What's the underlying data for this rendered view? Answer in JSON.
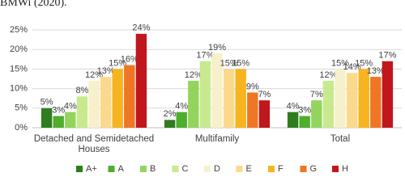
{
  "source_text": "BMWi (2020).",
  "chart_data": {
    "type": "bar",
    "categories": [
      "Detached and Semidetached Houses",
      "Multifamily",
      "Total"
    ],
    "series": [
      {
        "name": "A+",
        "color": "#2f7d1f",
        "values": [
          5,
          2,
          4
        ],
        "value_labels": [
          "5%",
          "2%",
          "4%"
        ]
      },
      {
        "name": "A",
        "color": "#4fae2c",
        "values": [
          3,
          4,
          3
        ],
        "value_labels": [
          "3%",
          "4%",
          "3%"
        ]
      },
      {
        "name": "B",
        "color": "#93d45e",
        "values": [
          4,
          12,
          7
        ],
        "value_labels": [
          "4%",
          "12%",
          "7%"
        ]
      },
      {
        "name": "C",
        "color": "#c9e98e",
        "values": [
          8,
          17,
          12
        ],
        "value_labels": [
          "8%",
          "17%",
          "12%"
        ]
      },
      {
        "name": "D",
        "color": "#f6f1cb",
        "values": [
          12,
          19,
          15
        ],
        "value_labels": [
          "12%",
          "19%",
          "15%"
        ]
      },
      {
        "name": "E",
        "color": "#fbd98c",
        "values": [
          13,
          15,
          14
        ],
        "value_labels": [
          "13%",
          "15%",
          "14%"
        ]
      },
      {
        "name": "F",
        "color": "#f6b51e",
        "values": [
          15,
          15,
          15
        ],
        "value_labels": [
          "15%",
          "15%",
          "15%"
        ]
      },
      {
        "name": "G",
        "color": "#ee7624",
        "values": [
          16,
          9,
          13
        ],
        "value_labels": [
          "16%",
          "9%",
          "13%"
        ]
      },
      {
        "name": "H",
        "color": "#c0171d",
        "values": [
          24,
          7,
          17
        ],
        "value_labels": [
          "24%",
          "7%",
          "17%"
        ]
      }
    ],
    "ylim": [
      0,
      25
    ],
    "yticks": [
      {
        "value": 0,
        "label": "0%"
      },
      {
        "value": 5,
        "label": "5%"
      },
      {
        "value": 10,
        "label": "10%"
      },
      {
        "value": 15,
        "label": "15%"
      },
      {
        "value": 20,
        "label": "20%"
      },
      {
        "value": 25,
        "label": "25%"
      }
    ],
    "grid": true,
    "legend": "bottom"
  }
}
